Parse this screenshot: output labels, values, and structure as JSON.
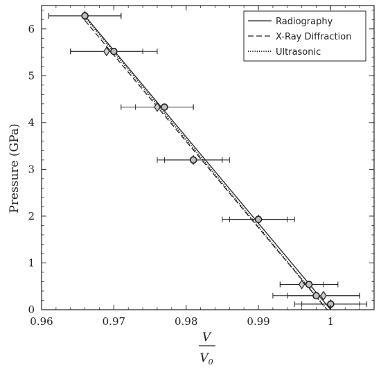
{
  "chart_data": {
    "type": "scatter",
    "xlabel_num": "V",
    "xlabel_den": "V0",
    "ylabel": "Pressure (GPa)",
    "xlim": [
      0.96,
      1.006
    ],
    "ylim": [
      0,
      6.5
    ],
    "x_ticks": [
      0.96,
      0.97,
      0.98,
      0.99,
      1.0
    ],
    "x_tick_labels": [
      "0.96",
      "0.97",
      "0.98",
      "0.99",
      "1"
    ],
    "y_ticks": [
      0,
      1,
      2,
      3,
      4,
      5,
      6
    ],
    "y_tick_labels": [
      "0",
      "1",
      "2",
      "3",
      "4",
      "5",
      "6"
    ],
    "grid": false,
    "legend_position": "top-right",
    "lines": [
      {
        "name": "Radiography",
        "dash": "solid",
        "x": [
          0.966,
          1.0
        ],
        "y": [
          6.28,
          0.0
        ]
      },
      {
        "name": "X-Ray Diffraction",
        "dash": "dashed",
        "x": [
          0.966,
          0.9995
        ],
        "y": [
          6.18,
          0.0
        ]
      },
      {
        "name": "Ultrasonic",
        "dash": "dotted",
        "x": [
          0.966,
          0.9995
        ],
        "y": [
          6.25,
          0.0
        ]
      }
    ],
    "points_circle": {
      "x": [
        0.966,
        0.97,
        0.977,
        0.981,
        0.99,
        0.997,
        0.998,
        1.0
      ],
      "y": [
        6.28,
        5.52,
        4.33,
        3.2,
        1.93,
        0.54,
        0.3,
        0.12
      ],
      "xerr": [
        0.005,
        0.006,
        0.004,
        0.005,
        0.005,
        0.004,
        0.006,
        0.005
      ]
    },
    "points_diamond": {
      "x": [
        0.966,
        0.969,
        0.976,
        0.981,
        0.99,
        0.996,
        0.999,
        1.0
      ],
      "y": [
        6.28,
        5.52,
        4.33,
        3.2,
        1.93,
        0.54,
        0.3,
        0.12
      ],
      "xerr": [
        0.005,
        0.005,
        0.005,
        0.004,
        0.004,
        0.003,
        0.005,
        0.004
      ]
    }
  }
}
